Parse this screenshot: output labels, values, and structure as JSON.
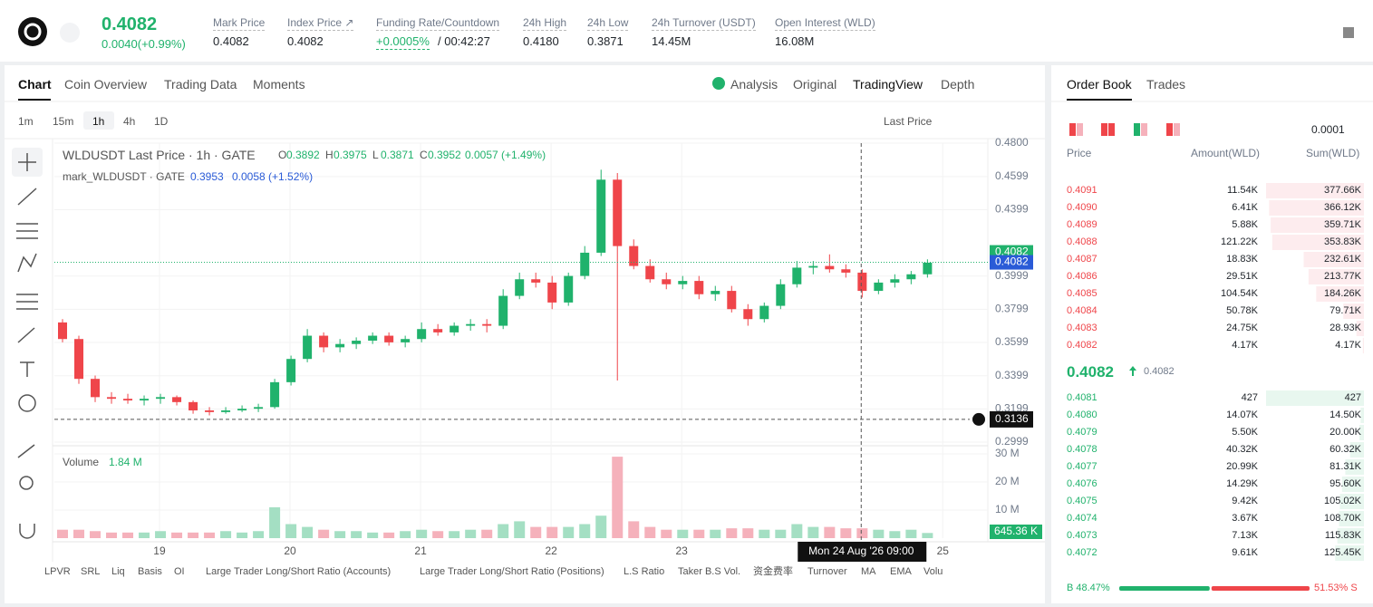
{
  "header": {
    "price": "0.4082",
    "change": "0.0040(+0.99%)",
    "stats": [
      {
        "label": "Mark Price",
        "value": "0.4082"
      },
      {
        "label": "Index Price ↗",
        "value": "0.4082"
      },
      {
        "label": "Funding Rate/Countdown",
        "value": "+0.0005%",
        "value2": "/ 00:42:27"
      },
      {
        "label": "24h High",
        "value": "0.4180"
      },
      {
        "label": "24h Low",
        "value": "0.3871"
      },
      {
        "label": "24h Turnover (USDT)",
        "value": "14.45M"
      },
      {
        "label": "Open Interest (WLD)",
        "value": "16.08M"
      }
    ]
  },
  "tabs": [
    "Chart",
    "Coin Overview",
    "Trading Data",
    "Moments"
  ],
  "views": [
    "Analysis",
    "Original",
    "TradingView",
    "Depth"
  ],
  "intervals": [
    "1m",
    "15m",
    "1h",
    "4h",
    "1D"
  ],
  "price_source": "Last Price",
  "legend": {
    "title": "WLDUSDT Last Price · 1h · GATE",
    "ohlc": [
      {
        "label": "O",
        "value": "0.3892"
      },
      {
        "label": "H",
        "value": "0.3975"
      },
      {
        "label": "L",
        "value": "0.3871"
      },
      {
        "label": "C",
        "value": "0.3952"
      }
    ],
    "change": "0.0057 (+1.49%)",
    "mark_title": "mark_WLDUSDT · GATE",
    "mark_value": "0.3953",
    "mark_change": "0.0058 (+1.52%)",
    "volume_title": "Volume",
    "volume_value": "1.84 M"
  },
  "chart_data": {
    "type": "candlestick",
    "ylim": [
      0.2999,
      0.48
    ],
    "yticks": [
      {
        "value": 0.48,
        "label": "0.4800"
      },
      {
        "value": 0.4599,
        "label": "0.4599"
      },
      {
        "value": 0.4399,
        "label": "0.4399"
      },
      {
        "value": 0.3999,
        "label": "0.3999"
      },
      {
        "value": 0.3799,
        "label": "0.3799"
      },
      {
        "value": 0.3599,
        "label": "0.3599"
      },
      {
        "value": 0.3399,
        "label": "0.3399"
      },
      {
        "value": 0.3199,
        "label": "0.3199"
      },
      {
        "value": 0.2999,
        "label": "0.2999"
      }
    ],
    "xlim": [
      0,
      57.2
    ],
    "xticks": [
      {
        "value": 6.44,
        "label": "19"
      },
      {
        "value": 14.44,
        "label": "20"
      },
      {
        "value": 22.44,
        "label": "21"
      },
      {
        "value": 30.44,
        "label": "22"
      },
      {
        "value": 38.44,
        "label": "23"
      },
      {
        "value": 54.44,
        "label": "25"
      }
    ],
    "open": [
      0.372,
      0.362,
      0.338,
      0.327,
      0.326,
      0.325,
      0.326,
      0.327,
      0.324,
      0.319,
      0.318,
      0.319,
      0.32,
      0.321,
      0.336,
      0.35,
      0.364,
      0.357,
      0.359,
      0.361,
      0.364,
      0.36,
      0.362,
      0.368,
      0.366,
      0.37,
      0.371,
      0.37,
      0.388,
      0.398,
      0.396,
      0.384,
      0.4,
      0.414,
      0.458,
      0.418,
      0.406,
      0.398,
      0.395,
      0.397,
      0.389,
      0.391,
      0.38,
      0.374,
      0.382,
      0.395,
      0.405,
      0.406,
      0.404,
      0.402,
      0.391,
      0.396,
      0.398,
      0.401
    ],
    "high": [
      0.374,
      0.364,
      0.34,
      0.33,
      0.329,
      0.328,
      0.329,
      0.328,
      0.325,
      0.321,
      0.321,
      0.322,
      0.323,
      0.338,
      0.352,
      0.368,
      0.366,
      0.362,
      0.363,
      0.366,
      0.366,
      0.364,
      0.372,
      0.371,
      0.372,
      0.374,
      0.374,
      0.392,
      0.402,
      0.402,
      0.4,
      0.402,
      0.418,
      0.464,
      0.462,
      0.422,
      0.41,
      0.402,
      0.4,
      0.4,
      0.394,
      0.394,
      0.383,
      0.384,
      0.398,
      0.409,
      0.409,
      0.413,
      0.407,
      0.404,
      0.398,
      0.401,
      0.403,
      0.41
    ],
    "low": [
      0.36,
      0.335,
      0.324,
      0.323,
      0.323,
      0.322,
      0.323,
      0.322,
      0.317,
      0.316,
      0.317,
      0.318,
      0.318,
      0.32,
      0.334,
      0.348,
      0.354,
      0.354,
      0.356,
      0.359,
      0.358,
      0.357,
      0.36,
      0.364,
      0.364,
      0.367,
      0.366,
      0.368,
      0.386,
      0.393,
      0.38,
      0.382,
      0.398,
      0.412,
      0.337,
      0.404,
      0.396,
      0.392,
      0.392,
      0.386,
      0.385,
      0.378,
      0.37,
      0.372,
      0.38,
      0.393,
      0.401,
      0.402,
      0.399,
      0.387,
      0.389,
      0.393,
      0.395,
      0.399
    ],
    "close": [
      0.362,
      0.338,
      0.327,
      0.326,
      0.325,
      0.326,
      0.327,
      0.324,
      0.319,
      0.318,
      0.319,
      0.32,
      0.321,
      0.336,
      0.35,
      0.364,
      0.357,
      0.359,
      0.361,
      0.364,
      0.36,
      0.362,
      0.368,
      0.366,
      0.37,
      0.371,
      0.37,
      0.388,
      0.398,
      0.396,
      0.384,
      0.4,
      0.414,
      0.458,
      0.418,
      0.406,
      0.398,
      0.395,
      0.397,
      0.389,
      0.391,
      0.38,
      0.374,
      0.382,
      0.395,
      0.405,
      0.406,
      0.404,
      0.402,
      0.391,
      0.396,
      0.398,
      0.401,
      0.408
    ],
    "volume": [
      3,
      3,
      2.5,
      2,
      2,
      2,
      2.5,
      2,
      2,
      2,
      2.5,
      2,
      2.5,
      11,
      5,
      4,
      3,
      2.5,
      2.5,
      2,
      2,
      2.5,
      3,
      2.5,
      2.5,
      3,
      3,
      5,
      6,
      4,
      4,
      4,
      5,
      8,
      29,
      6,
      4,
      3,
      3,
      3,
      3,
      3.5,
      3.5,
      3,
      3,
      5,
      4,
      4,
      3.5,
      3.5,
      3,
      2.5,
      3,
      1.84
    ],
    "vlim": [
      0,
      30
    ],
    "vticks": [
      {
        "value": 30,
        "label": "30 M"
      },
      {
        "value": 20,
        "label": "20 M"
      },
      {
        "value": 10,
        "label": "10 M"
      }
    ],
    "last_price": {
      "value": 0.4082,
      "label": "0.4082"
    },
    "mark_price": {
      "value": 0.4082,
      "label": "0.4082"
    },
    "crosshair": {
      "value": 0.3136,
      "label": "0.3136",
      "x": 49.44,
      "x_label": "Mon 24 Aug '26   09:00"
    },
    "last_volume": "645.36 K"
  },
  "indicators": [
    "LPVR",
    "SRL",
    "Liq",
    "Basis",
    "OI",
    "Large Trader Long/Short Ratio (Accounts)",
    "Large Trader Long/Short Ratio (Positions)",
    "L.S Ratio",
    "Taker B.S Vol.",
    "资金费率",
    "Turnover",
    "MA",
    "EMA",
    "Volu"
  ],
  "order_book": {
    "tabs": [
      "Order Book",
      "Trades"
    ],
    "precision": "0.0001",
    "columns": [
      "Price",
      "Amount(WLD)",
      "Sum(WLD)"
    ],
    "asks": [
      [
        "0.4091",
        "11.54K",
        "377.66K"
      ],
      [
        "0.4090",
        "6.41K",
        "366.12K"
      ],
      [
        "0.4089",
        "5.88K",
        "359.71K"
      ],
      [
        "0.4088",
        "121.22K",
        "353.83K"
      ],
      [
        "0.4087",
        "18.83K",
        "232.61K"
      ],
      [
        "0.4086",
        "29.51K",
        "213.77K"
      ],
      [
        "0.4085",
        "104.54K",
        "184.26K"
      ],
      [
        "0.4084",
        "50.78K",
        "79.71K"
      ],
      [
        "0.4083",
        "24.75K",
        "28.93K"
      ],
      [
        "0.4082",
        "4.17K",
        "4.17K"
      ]
    ],
    "mid": "0.4082",
    "mid_mark": "0.4082",
    "bids": [
      [
        "0.4081",
        "427",
        "427"
      ],
      [
        "0.4080",
        "14.07K",
        "14.50K"
      ],
      [
        "0.4079",
        "5.50K",
        "20.00K"
      ],
      [
        "0.4078",
        "40.32K",
        "60.32K"
      ],
      [
        "0.4077",
        "20.99K",
        "81.31K"
      ],
      [
        "0.4076",
        "14.29K",
        "95.60K"
      ],
      [
        "0.4075",
        "9.42K",
        "105.02K"
      ],
      [
        "0.4074",
        "3.67K",
        "108.70K"
      ],
      [
        "0.4073",
        "7.13K",
        "115.83K"
      ],
      [
        "0.4072",
        "9.61K",
        "125.45K"
      ]
    ],
    "ratio": {
      "values": [
        48.47,
        51.53
      ],
      "value_labels": [
        "B 48.47%",
        "51.53% S"
      ]
    }
  }
}
